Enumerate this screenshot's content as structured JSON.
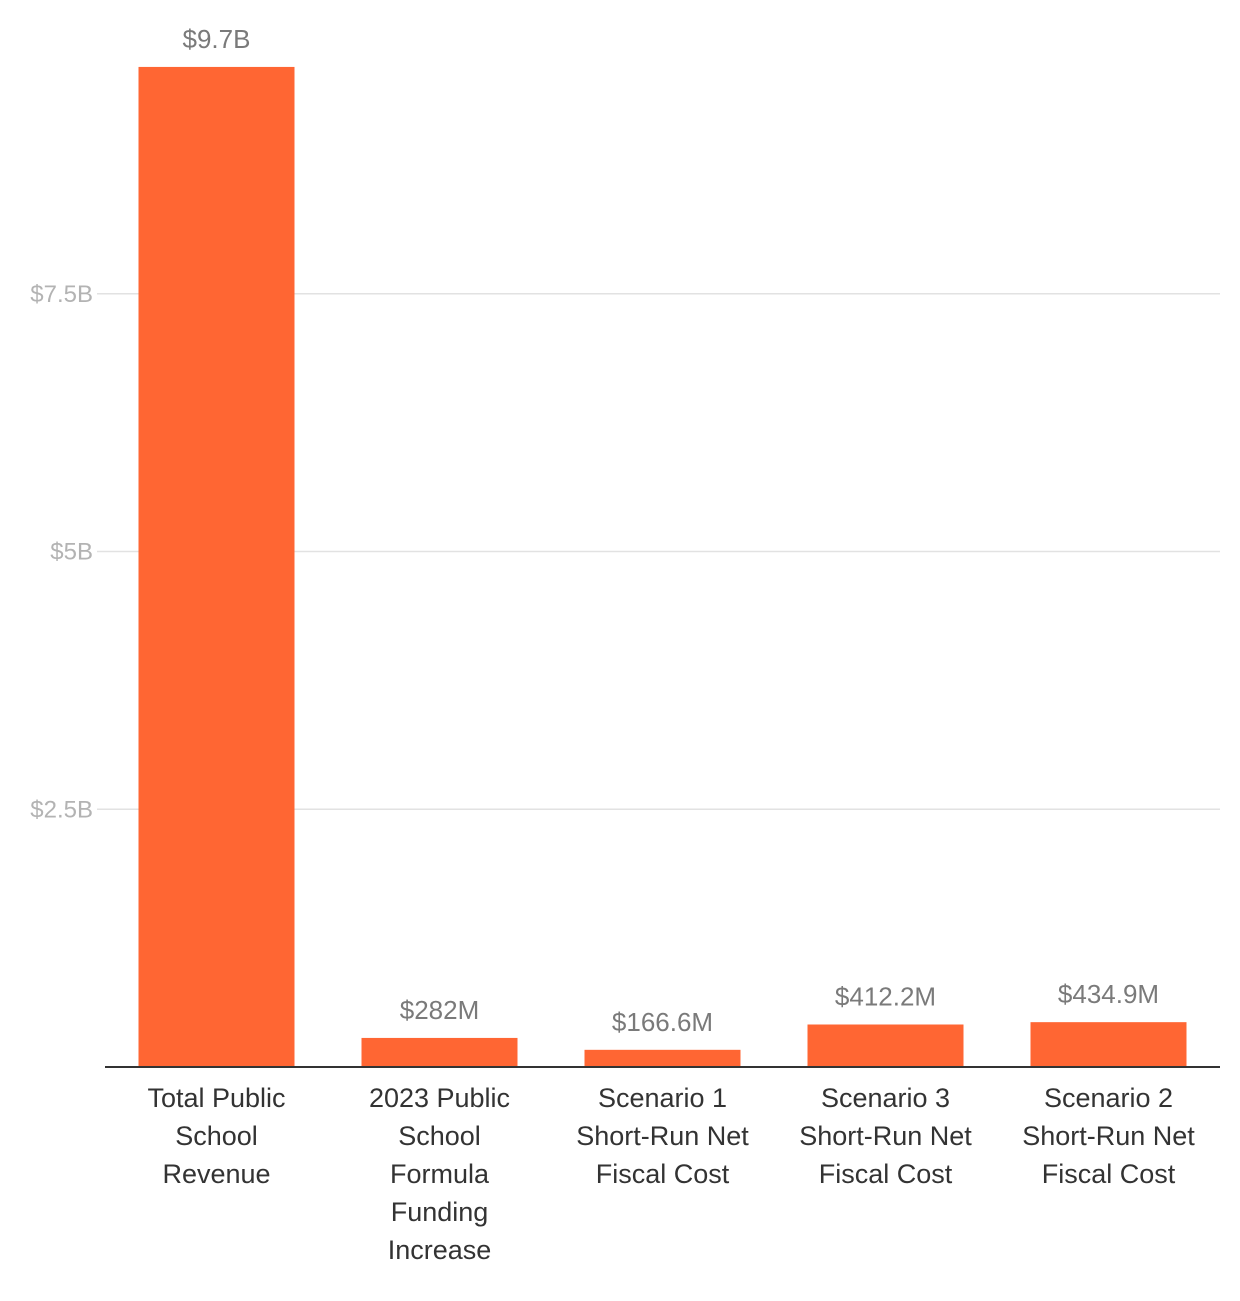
{
  "chart_data": {
    "type": "bar",
    "title": "",
    "xlabel": "",
    "ylabel": "",
    "categories": [
      "Total Public School Revenue",
      "2023 Public School Formula Funding Increase",
      "Scenario 1 Short-Run Net Fiscal Cost",
      "Scenario 3 Short-Run Net Fiscal Cost",
      "Scenario 2 Short-Run Net Fiscal Cost"
    ],
    "category_lines": [
      [
        "Total Public",
        "School",
        "Revenue"
      ],
      [
        "2023 Public",
        "School",
        "Formula",
        "Funding",
        "Increase"
      ],
      [
        "Scenario 1",
        "Short-Run Net",
        "Fiscal Cost"
      ],
      [
        "Scenario 3",
        "Short-Run Net",
        "Fiscal Cost"
      ],
      [
        "Scenario 2",
        "Short-Run Net",
        "Fiscal Cost"
      ]
    ],
    "values": [
      9700000000,
      282000000,
      166600000,
      412200000,
      434900000
    ],
    "value_labels": [
      "$9.7B",
      "$282M",
      "$166.6M",
      "$412.2M",
      "$434.9M"
    ],
    "ylim": [
      0,
      10000000000
    ],
    "yticks": [
      2500000000,
      5000000000,
      7500000000
    ],
    "ytick_labels": [
      "$2.5B",
      "$5B",
      "$7.5B"
    ],
    "grid": true,
    "legend": "none",
    "colors": {
      "bar": "#FF6633",
      "gridline": "#E2E2E2",
      "baseline": "#333333",
      "tick_label": "#B3B3B3",
      "data_label": "#7A7A7A",
      "category_label": "#333333"
    }
  }
}
